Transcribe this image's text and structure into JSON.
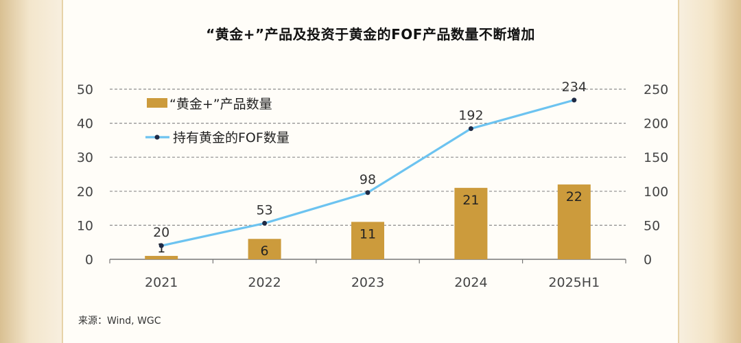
{
  "header": {
    "title": "“黄金+”产品及投资于黄金的FOF产品数量不断增加"
  },
  "footer": {
    "source": "来源：Wind, WGC"
  },
  "colors": {
    "bar": "#cc9b3c",
    "line": "#6cc3f0",
    "marker": "#1f2a44",
    "grid": "#8c8c8c"
  },
  "chart_data": {
    "type": "bar+line",
    "categories": [
      "2021",
      "2022",
      "2023",
      "2024",
      "2025H1"
    ],
    "series": [
      {
        "name": "“黄金+”产品数量",
        "type": "bar",
        "axis": "left",
        "values": [
          1,
          6,
          11,
          21,
          22
        ]
      },
      {
        "name": "持有黄金的FOF数量",
        "type": "line",
        "axis": "right",
        "values": [
          20,
          53,
          98,
          192,
          234
        ]
      }
    ],
    "ylim_left": [
      0,
      50
    ],
    "yticks_left": [
      "0",
      "10",
      "20",
      "30",
      "40",
      "50"
    ],
    "ylim_right": [
      0,
      250
    ],
    "yticks_right": [
      "0",
      "50",
      "100",
      "150",
      "200",
      "250"
    ],
    "grid": "horizontal-dashed",
    "legend_position": "top-left"
  }
}
